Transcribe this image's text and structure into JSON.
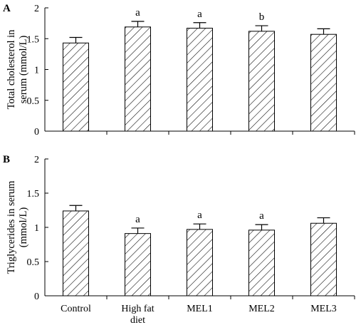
{
  "chart_data": [
    {
      "type": "bar",
      "panel_label": "A",
      "ylabel_line1": "Total cholesterol in",
      "ylabel_line2": "serum (mmol/L)",
      "ylim": [
        0,
        2
      ],
      "yticks": [
        "0",
        "0.5",
        "1",
        "1.5",
        "2"
      ],
      "categories": [
        "Control",
        "High fat diet",
        "MEL1",
        "MEL2",
        "MEL3"
      ],
      "show_categories": false,
      "values": [
        1.43,
        1.69,
        1.67,
        1.62,
        1.57
      ],
      "errors": [
        0.09,
        0.09,
        0.09,
        0.09,
        0.09
      ],
      "significance": [
        "",
        "a",
        "a",
        "b",
        ""
      ]
    },
    {
      "type": "bar",
      "panel_label": "B",
      "ylabel_line1": "Triglycerides in serum",
      "ylabel_line2": "(mmol/L)",
      "ylim": [
        0,
        2
      ],
      "yticks": [
        "0",
        "0.5",
        "1",
        "1.5",
        "2"
      ],
      "categories": [
        "Control",
        "High fat diet",
        "MEL1",
        "MEL2",
        "MEL3"
      ],
      "show_categories": true,
      "values": [
        1.24,
        0.91,
        0.97,
        0.96,
        1.06
      ],
      "errors": [
        0.08,
        0.08,
        0.08,
        0.08,
        0.08
      ],
      "significance": [
        "",
        "a",
        "a",
        "a",
        ""
      ]
    }
  ]
}
